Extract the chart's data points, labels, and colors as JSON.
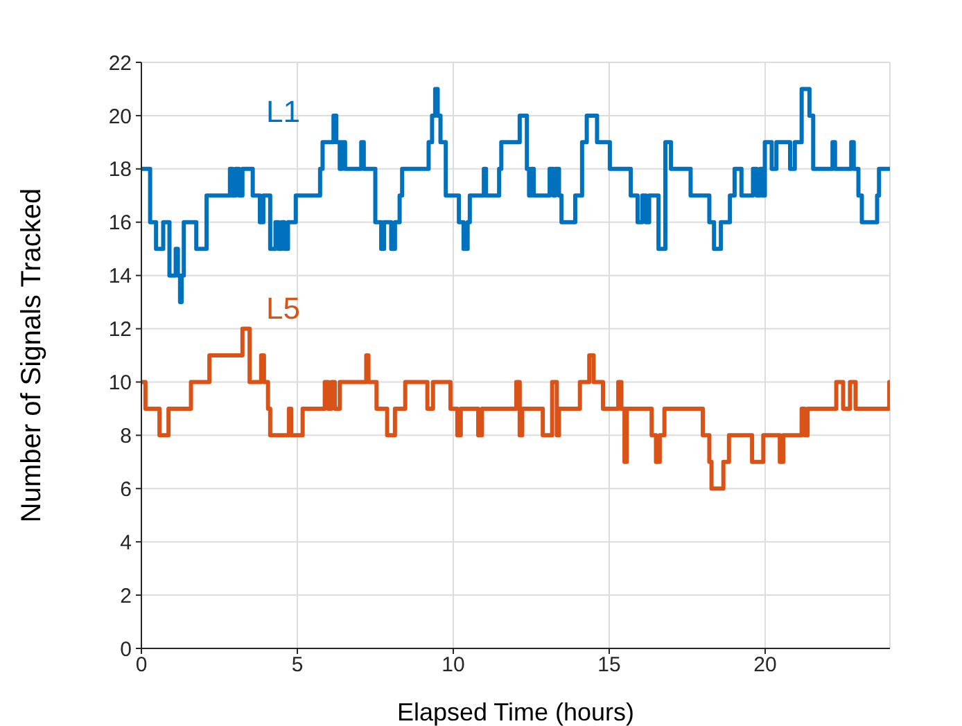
{
  "chart_data": {
    "type": "step",
    "xlabel": "Elapsed Time (hours)",
    "ylabel": "Number of Signals Tracked",
    "xlim": [
      0,
      24
    ],
    "xticks": [
      0,
      5,
      10,
      15,
      20
    ],
    "ylim": [
      0,
      22
    ],
    "yticks": [
      0,
      2,
      4,
      6,
      8,
      10,
      12,
      14,
      16,
      18,
      20,
      22
    ],
    "grid": true,
    "legend": false,
    "line_style": "solid",
    "marker": "none",
    "series": [
      {
        "name": "L1",
        "color": "#0072bd",
        "x": [
          0,
          0.28,
          0.47,
          0.7,
          0.9,
          1.1,
          1.17,
          1.24,
          1.29,
          1.36,
          1.76,
          2.09,
          2.84,
          2.92,
          3.02,
          3.13,
          3.24,
          3.57,
          3.8,
          3.91,
          4.13,
          4.3,
          4.4,
          4.5,
          4.58,
          4.7,
          4.95,
          5.73,
          5.81,
          6.16,
          6.25,
          6.36,
          6.43,
          6.53,
          7.05,
          7.13,
          7.5,
          7.69,
          7.78,
          8.01,
          8.13,
          8.28,
          8.36,
          9.21,
          9.32,
          9.42,
          9.5,
          9.59,
          9.76,
          10.18,
          10.33,
          10.46,
          10.53,
          10.98,
          11.05,
          11.47,
          11.54,
          12.13,
          12.36,
          12.43,
          12.5,
          12.58,
          13.09,
          13.21,
          13.27,
          13.39,
          13.47,
          13.91,
          14.13,
          14.28,
          14.61,
          15.02,
          15.69,
          15.91,
          16.06,
          16.18,
          16.28,
          16.58,
          16.8,
          16.98,
          17.61,
          18.21,
          18.36,
          18.58,
          18.87,
          19.02,
          19.24,
          19.61,
          19.73,
          19.84,
          19.91,
          19.99,
          20.21,
          20.36,
          20.8,
          20.95,
          21.17,
          21.42,
          21.54,
          22.16,
          22.24,
          22.76,
          22.84,
          22.99,
          23.1,
          23.59,
          23.65,
          24
        ],
        "values": [
          18,
          16,
          15,
          16,
          14,
          15,
          14,
          13,
          14,
          16,
          15,
          17,
          18,
          17,
          18,
          17,
          18,
          17,
          16,
          17,
          15,
          16,
          15,
          16,
          15,
          16,
          17,
          18,
          19,
          20,
          19,
          18,
          19,
          18,
          19,
          18,
          16,
          15,
          16,
          15,
          16,
          17,
          18,
          19,
          20,
          21,
          20,
          19,
          17,
          16,
          15,
          16,
          17,
          18,
          17,
          18,
          19,
          20,
          18,
          17,
          18,
          17,
          18,
          17,
          18,
          17,
          16,
          17,
          19,
          20,
          19,
          18,
          17,
          16,
          17,
          16,
          17,
          15,
          19,
          18,
          17,
          16,
          15,
          16,
          17,
          18,
          17,
          18,
          17,
          18,
          17,
          19,
          18,
          19,
          18,
          19,
          21,
          20,
          18,
          19,
          18,
          19,
          18,
          17,
          16,
          17,
          18,
          18
        ]
      },
      {
        "name": "L5",
        "color": "#d95319",
        "x": [
          0,
          0.13,
          0.58,
          0.87,
          1.59,
          2.18,
          3.24,
          3.47,
          3.84,
          3.93,
          4.06,
          4.13,
          4.73,
          4.8,
          5.17,
          5.88,
          5.99,
          6.09,
          6.2,
          6.36,
          7.21,
          7.28,
          7.54,
          7.88,
          8.13,
          8.46,
          9.17,
          9.35,
          9.91,
          10.13,
          10.24,
          10.8,
          10.92,
          12.02,
          12.13,
          12.21,
          12.87,
          13.17,
          13.32,
          13.39,
          14.06,
          14.36,
          14.5,
          14.8,
          15.29,
          15.39,
          15.49,
          15.56,
          16.36,
          16.5,
          16.62,
          16.77,
          18.0,
          18.21,
          18.28,
          18.66,
          18.84,
          19.58,
          19.94,
          20.47,
          20.58,
          21.17,
          21.27,
          21.36,
          22.28,
          22.5,
          22.72,
          22.9,
          23.98,
          24
        ],
        "values": [
          10,
          9,
          8,
          9,
          10,
          11,
          12,
          10,
          11,
          10,
          9,
          8,
          9,
          8,
          9,
          10,
          9,
          10,
          9,
          10,
          11,
          10,
          9,
          8,
          9,
          10,
          9,
          10,
          9,
          8,
          9,
          8,
          9,
          10,
          8,
          9,
          8,
          10,
          8,
          9,
          10,
          11,
          10,
          9,
          10,
          9,
          7,
          9,
          8,
          7,
          8,
          9,
          8,
          7,
          6,
          7,
          8,
          7,
          8,
          7,
          8,
          9,
          8,
          9,
          10,
          9,
          10,
          9,
          10,
          10
        ]
      }
    ]
  }
}
